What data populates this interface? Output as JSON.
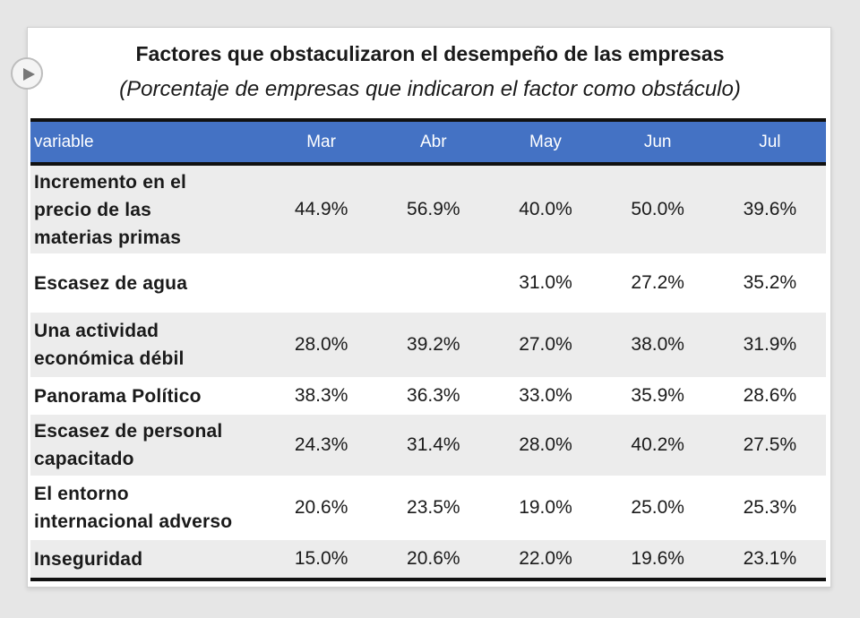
{
  "chart_data": {
    "type": "table",
    "title": "Factores que obstaculizaron el desempeño de las empresas",
    "subtitle": "(Porcentaje de empresas que indicaron el factor como obstáculo)",
    "header_label": "variable",
    "columns": [
      "Mar",
      "Abr",
      "May",
      "Jun",
      "Jul"
    ],
    "header_color": "#4472c4",
    "rows": [
      {
        "label_lines": [
          "Incremento en el",
          "precio de las",
          "materias primas"
        ],
        "values": [
          "44.9%",
          "56.9%",
          "40.0%",
          "50.0%",
          "39.6%"
        ]
      },
      {
        "label_lines": [
          "Escasez de agua"
        ],
        "values": [
          "",
          "",
          "31.0%",
          "27.2%",
          "35.2%"
        ]
      },
      {
        "label_lines": [
          "Una actividad",
          "económica débil"
        ],
        "values": [
          "28.0%",
          "39.2%",
          "27.0%",
          "38.0%",
          "31.9%"
        ]
      },
      {
        "label_lines": [
          "Panorama Político"
        ],
        "values": [
          "38.3%",
          "36.3%",
          "33.0%",
          "35.9%",
          "28.6%"
        ]
      },
      {
        "label_lines": [
          "Escasez de personal",
          "capacitado"
        ],
        "values": [
          "24.3%",
          "31.4%",
          "28.0%",
          "40.2%",
          "27.5%"
        ]
      },
      {
        "label_lines": [
          "El entorno",
          "internacional adverso"
        ],
        "values": [
          "20.6%",
          "23.5%",
          "19.0%",
          "25.0%",
          "25.3%"
        ]
      },
      {
        "label_lines": [
          "Inseguridad"
        ],
        "values": [
          "15.0%",
          "20.6%",
          "22.0%",
          "19.6%",
          "23.1%"
        ]
      }
    ]
  },
  "icons": {
    "play": "play-icon"
  }
}
